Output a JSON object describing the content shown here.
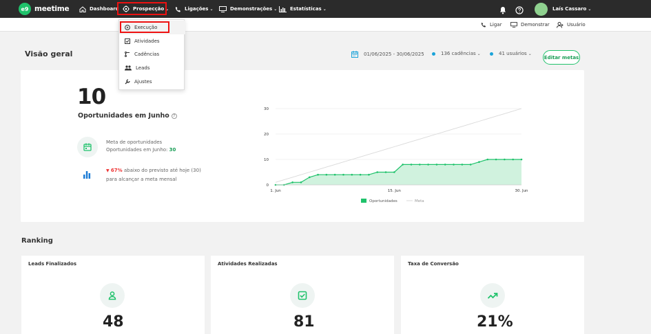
{
  "brand": {
    "logo_mark": "e9",
    "name": "meetime",
    "accent": "#1fc26b"
  },
  "nav": {
    "items": [
      {
        "label": "Dashboard",
        "icon": "home-icon",
        "has_menu": false
      },
      {
        "label": "Prospecção",
        "icon": "target-icon",
        "has_menu": true
      },
      {
        "label": "Ligações",
        "icon": "phone-icon",
        "has_menu": true
      },
      {
        "label": "Demonstrações",
        "icon": "monitor-icon",
        "has_menu": true
      },
      {
        "label": "Estatísticas",
        "icon": "stats-icon",
        "has_menu": true
      }
    ],
    "user_name": "Laís Cassaro",
    "chevron": "⌄"
  },
  "subbar": {
    "call": "Ligar",
    "demo": "Demonstrar",
    "user": "Usuário"
  },
  "dropdown": {
    "items": [
      {
        "label": "Execução",
        "icon": "play-circle-icon"
      },
      {
        "label": "Atividades",
        "icon": "checkbox-icon"
      },
      {
        "label": "Cadências",
        "icon": "cadence-icon"
      },
      {
        "label": "Leads",
        "icon": "people-icon"
      },
      {
        "label": "Ajustes",
        "icon": "wrench-icon"
      }
    ]
  },
  "overview": {
    "title": "Visão geral",
    "date_range": "01/06/2025 - 30/06/2025",
    "cadences_filter": "136 cadências",
    "users_filter": "41 usuários",
    "edit_button": "Editar metas",
    "opportunities_count": "10",
    "opportunities_label": "Oportunidades em Junho",
    "goal_line1": "Meta de oportunidades",
    "goal_line2_prefix": "Oportunidades em Junho: ",
    "goal_value": "30",
    "below_pct": "67%",
    "below_text": " abaixo do previsto até hoje (30)",
    "below_line2": "para alcançar a meta mensal"
  },
  "chart_data": {
    "type": "area",
    "title": "",
    "xlabel": "",
    "ylabel": "",
    "x_tick_labels": [
      "1. Jun",
      "15. Jun",
      "30. Jun"
    ],
    "y_ticks": [
      0,
      10,
      20,
      30
    ],
    "ylim": [
      0,
      30
    ],
    "x": [
      1,
      2,
      3,
      4,
      5,
      6,
      7,
      8,
      9,
      10,
      11,
      12,
      13,
      14,
      15,
      16,
      17,
      18,
      19,
      20,
      21,
      22,
      23,
      24,
      25,
      26,
      27,
      28,
      29,
      30
    ],
    "series": [
      {
        "name": "Oportunidades",
        "color": "#1fc26b",
        "values": [
          0,
          0,
          1,
          1,
          3,
          4,
          4,
          4,
          4,
          4,
          4,
          4,
          5,
          5,
          5,
          8,
          8,
          8,
          8,
          8,
          8,
          8,
          8,
          8,
          9,
          10,
          10,
          10,
          10,
          10
        ]
      },
      {
        "name": "Meta",
        "color": "#d9d9d9",
        "values": [
          1,
          2,
          3,
          4,
          5,
          6,
          7,
          8,
          9,
          10,
          11,
          12,
          13,
          14,
          15,
          16,
          17,
          18,
          19,
          20,
          21,
          22,
          23,
          24,
          25,
          26,
          27,
          28,
          29,
          30
        ]
      }
    ],
    "legend_position": "bottom"
  },
  "ranking": {
    "title": "Ranking",
    "cards": [
      {
        "title": "Leads Finalizados",
        "value": "48",
        "icon": "person-icon"
      },
      {
        "title": "Atividades Realizadas",
        "value": "81",
        "icon": "check-square-icon"
      },
      {
        "title": "Taxa de Conversão",
        "value": "21%",
        "icon": "trending-up-icon"
      }
    ]
  }
}
